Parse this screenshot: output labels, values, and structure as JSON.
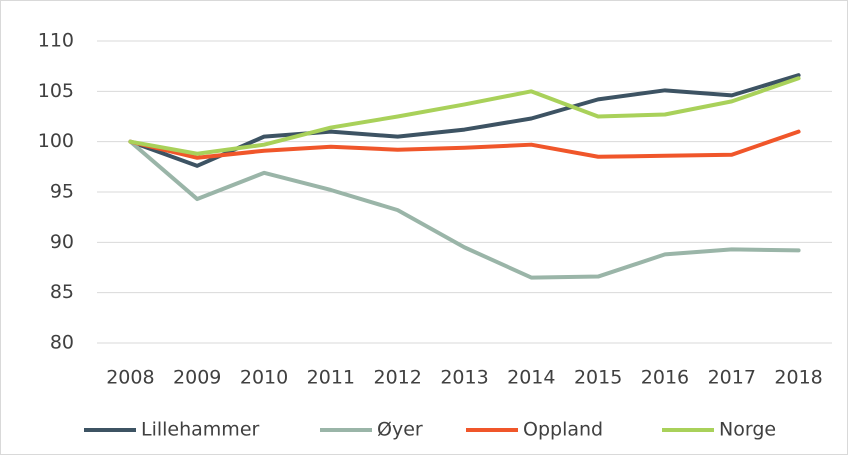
{
  "chart_data": {
    "type": "line",
    "categories": [
      "2008",
      "2009",
      "2010",
      "2011",
      "2012",
      "2013",
      "2014",
      "2015",
      "2016",
      "2017",
      "2018"
    ],
    "series": [
      {
        "name": "Lillehammer",
        "color": "#3d5363",
        "values": [
          100,
          97.6,
          100.5,
          101,
          100.5,
          101.2,
          102.3,
          104.2,
          105.1,
          104.6,
          106.6
        ]
      },
      {
        "name": "Øyer",
        "color": "#9ab5a8",
        "values": [
          100,
          94.3,
          96.9,
          95.2,
          93.2,
          89.5,
          86.5,
          86.6,
          88.8,
          89.3,
          89.2
        ]
      },
      {
        "name": "Oppland",
        "color": "#f0562a",
        "values": [
          100,
          98.4,
          99.1,
          99.5,
          99.2,
          99.4,
          99.7,
          98.5,
          98.6,
          98.7,
          101
        ]
      },
      {
        "name": "Norge",
        "color": "#a9d15a",
        "values": [
          100,
          98.8,
          99.7,
          101.4,
          102.5,
          103.7,
          105,
          102.5,
          102.7,
          104,
          106.3
        ]
      }
    ],
    "ylim": [
      80,
      110
    ],
    "yticks": [
      80,
      85,
      90,
      95,
      100,
      105,
      110
    ],
    "grid": true,
    "legend": "bottom"
  }
}
